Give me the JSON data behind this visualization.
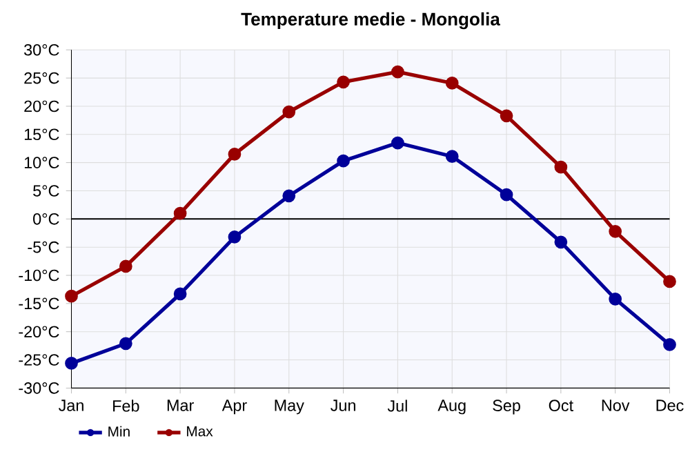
{
  "chart_data": {
    "type": "line",
    "title": "Temperature medie - Mongolia",
    "categories": [
      "Jan",
      "Feb",
      "Mar",
      "Apr",
      "May",
      "Jun",
      "Jul",
      "Aug",
      "Sep",
      "Oct",
      "Nov",
      "Dec"
    ],
    "series": [
      {
        "name": "Min",
        "color": "#000099",
        "values": [
          -25.6,
          -22.1,
          -13.3,
          -3.2,
          4.1,
          10.3,
          13.5,
          11.1,
          4.3,
          -4.1,
          -14.2,
          -22.3
        ]
      },
      {
        "name": "Max",
        "color": "#990000",
        "values": [
          -13.7,
          -8.4,
          1.0,
          11.5,
          19.0,
          24.3,
          26.1,
          24.1,
          18.3,
          9.2,
          -2.2,
          -11.1
        ]
      }
    ],
    "ylim": [
      -30,
      30
    ],
    "yticks": [
      {
        "value": -30,
        "label": "-30°C"
      },
      {
        "value": -25,
        "label": "-25°C"
      },
      {
        "value": -20,
        "label": "-20°C"
      },
      {
        "value": -15,
        "label": "-15°C"
      },
      {
        "value": -10,
        "label": "-10°C"
      },
      {
        "value": -5,
        "label": "-5°C"
      },
      {
        "value": 0,
        "label": "0°C"
      },
      {
        "value": 5,
        "label": "5°C"
      },
      {
        "value": 10,
        "label": "10°C"
      },
      {
        "value": 15,
        "label": "15°C"
      },
      {
        "value": 20,
        "label": "20°C"
      },
      {
        "value": 25,
        "label": "25°C"
      },
      {
        "value": 30,
        "label": "30°C"
      }
    ],
    "ref_lines": [
      {
        "axis": "y",
        "value": 0,
        "color": "#000000"
      }
    ],
    "grid": true,
    "legend": "bottom left",
    "marker": "circle",
    "line_style": "solid"
  }
}
